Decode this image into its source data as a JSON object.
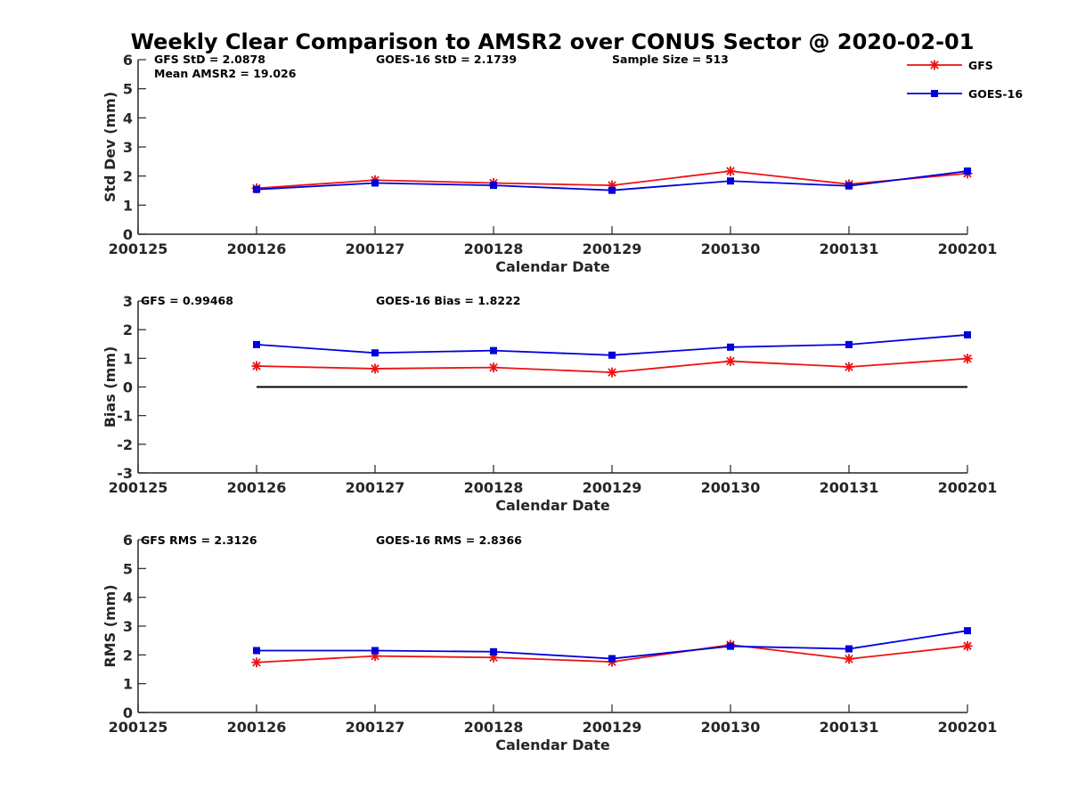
{
  "figure": {
    "title": "Weekly Clear Comparison to AMSR2 over CONUS Sector @ 2020-02-01",
    "legend": {
      "placement": "top-right",
      "entries": [
        {
          "label": "GFS",
          "color": "#ee1111",
          "marker": "asterisk"
        },
        {
          "label": "GOES-16",
          "color": "#0000dd",
          "marker": "square"
        }
      ]
    }
  },
  "chart_data": [
    {
      "type": "line",
      "xlabel": "Calendar Date",
      "ylabel": "Std Dev (mm)",
      "categories": [
        "200125",
        "200126",
        "200127",
        "200128",
        "200129",
        "200130",
        "200131",
        "200201"
      ],
      "ylim": [
        0,
        6
      ],
      "yticks": [
        "0",
        "1",
        "2",
        "3",
        "4",
        "5",
        "6"
      ],
      "annotations": [
        "GFS StD = 2.0878",
        "GOES-16 StD = 2.1739",
        "Sample Size = 513",
        "Mean AMSR2 = 19.026"
      ],
      "reference_line": null,
      "series": [
        {
          "name": "GFS",
          "color": "#ee1111",
          "marker": "asterisk",
          "values": [
            null,
            1.58,
            1.86,
            1.76,
            1.68,
            2.17,
            1.72,
            2.09
          ]
        },
        {
          "name": "GOES-16",
          "color": "#0000dd",
          "marker": "square",
          "values": [
            null,
            1.54,
            1.76,
            1.68,
            1.51,
            1.83,
            1.66,
            2.17
          ]
        }
      ]
    },
    {
      "type": "line",
      "xlabel": "Calendar Date",
      "ylabel": "Bias (mm)",
      "categories": [
        "200125",
        "200126",
        "200127",
        "200128",
        "200129",
        "200130",
        "200131",
        "200201"
      ],
      "ylim": [
        -3,
        3
      ],
      "yticks": [
        "-3",
        "-2",
        "-1",
        "0",
        "1",
        "2",
        "3"
      ],
      "annotations": [
        "GFS = 0.99468",
        "GOES-16 Bias  = 1.8222"
      ],
      "reference_line": {
        "y": 0,
        "x_from": 1,
        "x_to": 7,
        "color": "#000000"
      },
      "series": [
        {
          "name": "GFS",
          "color": "#ee1111",
          "marker": "asterisk",
          "values": [
            null,
            0.73,
            0.64,
            0.68,
            0.51,
            0.9,
            0.7,
            0.99
          ]
        },
        {
          "name": "GOES-16",
          "color": "#0000dd",
          "marker": "square",
          "values": [
            null,
            1.48,
            1.19,
            1.27,
            1.11,
            1.39,
            1.48,
            1.82
          ]
        }
      ]
    },
    {
      "type": "line",
      "xlabel": "Calendar Date",
      "ylabel": "RMS (mm)",
      "categories": [
        "200125",
        "200126",
        "200127",
        "200128",
        "200129",
        "200130",
        "200131",
        "200201"
      ],
      "ylim": [
        0,
        6
      ],
      "yticks": [
        "0",
        "1",
        "2",
        "3",
        "4",
        "5",
        "6"
      ],
      "annotations": [
        "GFS RMS = 2.3126",
        "GOES-16 RMS = 2.8366"
      ],
      "reference_line": null,
      "series": [
        {
          "name": "GFS",
          "color": "#ee1111",
          "marker": "asterisk",
          "values": [
            null,
            1.74,
            1.96,
            1.91,
            1.76,
            2.35,
            1.86,
            2.31
          ]
        },
        {
          "name": "GOES-16",
          "color": "#0000dd",
          "marker": "square",
          "values": [
            null,
            2.15,
            2.15,
            2.11,
            1.87,
            2.3,
            2.21,
            2.84
          ]
        }
      ]
    }
  ]
}
